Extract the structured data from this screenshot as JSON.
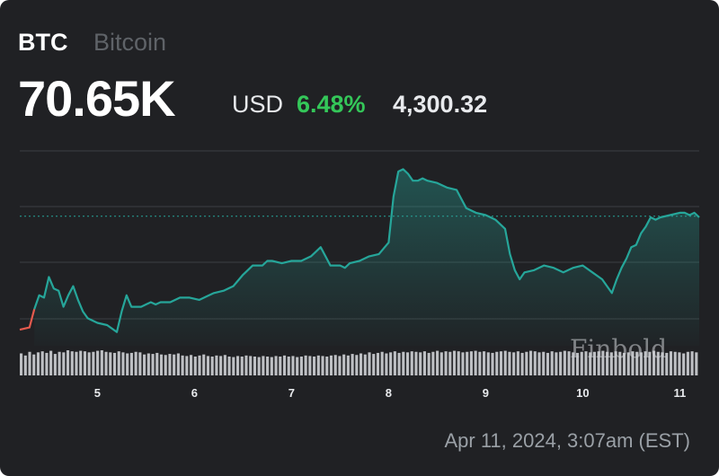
{
  "header": {
    "ticker": "BTC",
    "name": "Bitcoin",
    "price": "70.65K",
    "currency": "USD",
    "percent_change": "6.48%",
    "change": "4,300.32"
  },
  "timestamp": "Apr 11, 2024, 3:07am (EST)",
  "watermark": "Finbold",
  "colors": {
    "background": "#202124",
    "line": "#26a69a",
    "positive": "#34c759",
    "start_segment": "#e55a4e",
    "grid": "#3c4043",
    "reference": "#26a69a",
    "volume": "#cfd2d6"
  },
  "chart_data": {
    "type": "line",
    "title": "",
    "xlabel": "",
    "ylabel": "",
    "xticks": [
      5,
      6,
      7,
      8,
      9,
      10,
      11
    ],
    "xlim": [
      4.2,
      11.2
    ],
    "ylim": [
      65000,
      73500
    ],
    "grid": true,
    "reference_line": 70650,
    "series": [
      {
        "x": [
          4.2,
          4.3,
          4.35,
          4.4,
          4.45,
          4.5,
          4.55,
          4.6,
          4.65,
          4.7,
          4.75,
          4.8,
          4.85,
          4.9,
          5.0,
          5.1,
          5.2,
          5.25,
          5.3,
          5.35,
          5.45,
          5.5,
          5.55,
          5.6,
          5.65,
          5.75,
          5.85,
          5.95,
          6.05,
          6.15,
          6.2,
          6.3,
          6.4,
          6.5,
          6.6,
          6.7,
          6.75,
          6.8,
          6.9,
          7.0,
          7.1,
          7.2,
          7.3,
          7.4,
          7.5,
          7.55,
          7.6,
          7.7,
          7.8,
          7.9,
          8.0,
          8.05,
          8.1,
          8.15,
          8.2,
          8.25,
          8.3,
          8.35,
          8.4,
          8.5,
          8.6,
          8.7,
          8.75,
          8.8,
          8.9,
          9.0,
          9.05,
          9.1,
          9.2,
          9.25,
          9.3,
          9.35,
          9.4,
          9.5,
          9.6,
          9.7,
          9.8,
          9.9,
          10.0,
          10.1,
          10.2,
          10.3,
          10.35,
          10.4,
          10.45,
          10.5,
          10.55,
          10.6,
          10.65,
          10.7,
          10.75,
          10.8,
          10.9,
          11.0,
          11.05,
          11.1,
          11.15,
          11.2
        ],
        "values": [
          65700,
          65800,
          66600,
          67200,
          67100,
          68000,
          67500,
          67400,
          66700,
          67200,
          67600,
          67000,
          66500,
          66200,
          66000,
          65900,
          65600,
          66500,
          67200,
          66700,
          66700,
          66800,
          66900,
          66800,
          66900,
          66900,
          67100,
          67100,
          67000,
          67200,
          67300,
          67400,
          67600,
          68100,
          68500,
          68500,
          68700,
          68700,
          68600,
          68700,
          68700,
          68900,
          69300,
          68500,
          68500,
          68400,
          68600,
          68700,
          68900,
          69000,
          69500,
          71500,
          72600,
          72700,
          72500,
          72200,
          72200,
          72300,
          72200,
          72100,
          71900,
          71800,
          71400,
          71000,
          70800,
          70700,
          70600,
          70500,
          70100,
          69000,
          68300,
          67900,
          68200,
          68300,
          68500,
          68400,
          68200,
          68400,
          68500,
          68200,
          67900,
          67300,
          67900,
          68400,
          68800,
          69300,
          69400,
          69900,
          70200,
          70600,
          70500,
          70600,
          70700,
          70800,
          70800,
          70700,
          70800,
          70600
        ]
      }
    ],
    "volume": [
      42,
      38,
      45,
      40,
      44,
      46,
      43,
      47,
      41,
      45,
      44,
      48,
      46,
      45,
      47,
      46,
      44,
      45,
      47,
      48,
      45,
      44,
      43,
      46,
      44,
      42,
      43,
      45,
      44,
      40,
      42,
      41,
      43,
      40,
      39,
      41,
      40,
      42,
      38,
      37,
      39,
      36,
      38,
      40,
      37,
      36,
      38,
      37,
      39,
      36,
      35,
      37,
      36,
      38,
      37,
      36,
      35,
      37,
      36,
      35,
      37,
      36,
      38,
      36,
      37,
      35,
      36,
      38,
      37,
      36,
      38,
      37,
      36,
      38,
      39,
      37,
      40,
      38,
      41,
      39,
      42,
      40,
      44,
      41,
      43,
      45,
      42,
      44,
      46,
      43,
      45,
      44,
      46,
      45,
      44,
      46,
      43,
      45,
      47,
      44,
      46,
      45,
      47,
      46,
      44,
      45,
      46,
      47,
      45,
      46,
      44,
      43,
      45,
      46,
      47,
      45,
      44,
      46,
      43,
      45,
      47,
      46,
      44,
      45,
      43,
      46,
      44,
      45,
      47,
      46,
      44,
      43,
      45,
      46,
      44,
      45,
      46,
      47,
      45,
      44,
      46,
      45,
      43,
      44,
      46,
      45,
      44,
      46,
      45,
      47,
      45,
      44,
      43,
      46,
      45,
      44,
      42,
      45,
      46,
      44
    ]
  }
}
